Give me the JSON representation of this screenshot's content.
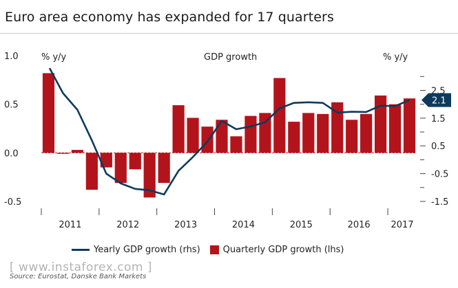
{
  "title": "Euro area economy has expanded for 17 quarters",
  "legend": {
    "line_label": "Yearly GDP growth (rhs)",
    "bar_label": "Quarterly GDP growth (lhs)"
  },
  "source": "Source: Eurostat, Danske Bank Markets",
  "watermark": "[ www.instaforex.com ]",
  "colors": {
    "bars": "#b3141b",
    "line": "#0d3a5c",
    "callout": "#0d3a5c"
  },
  "chart_data": {
    "type": "bar",
    "title": "GDP growth",
    "left_axis_label": "% y/y",
    "right_axis_label": "% y/y",
    "left_ylim": [
      -0.5,
      1.0
    ],
    "left_ticks": [
      "1.0",
      "0.5",
      "0.0",
      "-0.5"
    ],
    "right_ylim": [
      -1.5,
      3.75
    ],
    "right_ticks": [
      "2.5",
      "1.5",
      "0.5",
      "-0.5",
      "-1.5"
    ],
    "right_minor_ticks": [
      3.0,
      2.0,
      1.0,
      0.0,
      -1.0
    ],
    "years": [
      "2011",
      "2012",
      "2013",
      "2014",
      "2015",
      "2016",
      "2017"
    ],
    "quarters_per_year": 4,
    "series": [
      {
        "name": "Quarterly GDP growth (lhs)",
        "axis": "left",
        "values": [
          0.82,
          -0.01,
          0.03,
          -0.38,
          -0.15,
          -0.31,
          -0.17,
          -0.46,
          -0.31,
          0.49,
          0.36,
          0.27,
          0.34,
          0.17,
          0.38,
          0.41,
          0.77,
          0.32,
          0.41,
          0.4,
          0.52,
          0.34,
          0.4,
          0.59,
          0.5,
          0.56
        ]
      },
      {
        "name": "Yearly GDP growth (rhs)",
        "axis": "right",
        "values": [
          3.3,
          2.4,
          1.8,
          0.7,
          -0.5,
          -0.85,
          -1.05,
          -1.1,
          -1.25,
          -0.4,
          0.1,
          0.65,
          1.4,
          1.1,
          1.2,
          1.35,
          1.85,
          2.05,
          2.07,
          2.05,
          1.7,
          1.73,
          1.72,
          1.95,
          1.93,
          2.15
        ]
      }
    ],
    "callout_value": "2.1",
    "grid": false
  }
}
